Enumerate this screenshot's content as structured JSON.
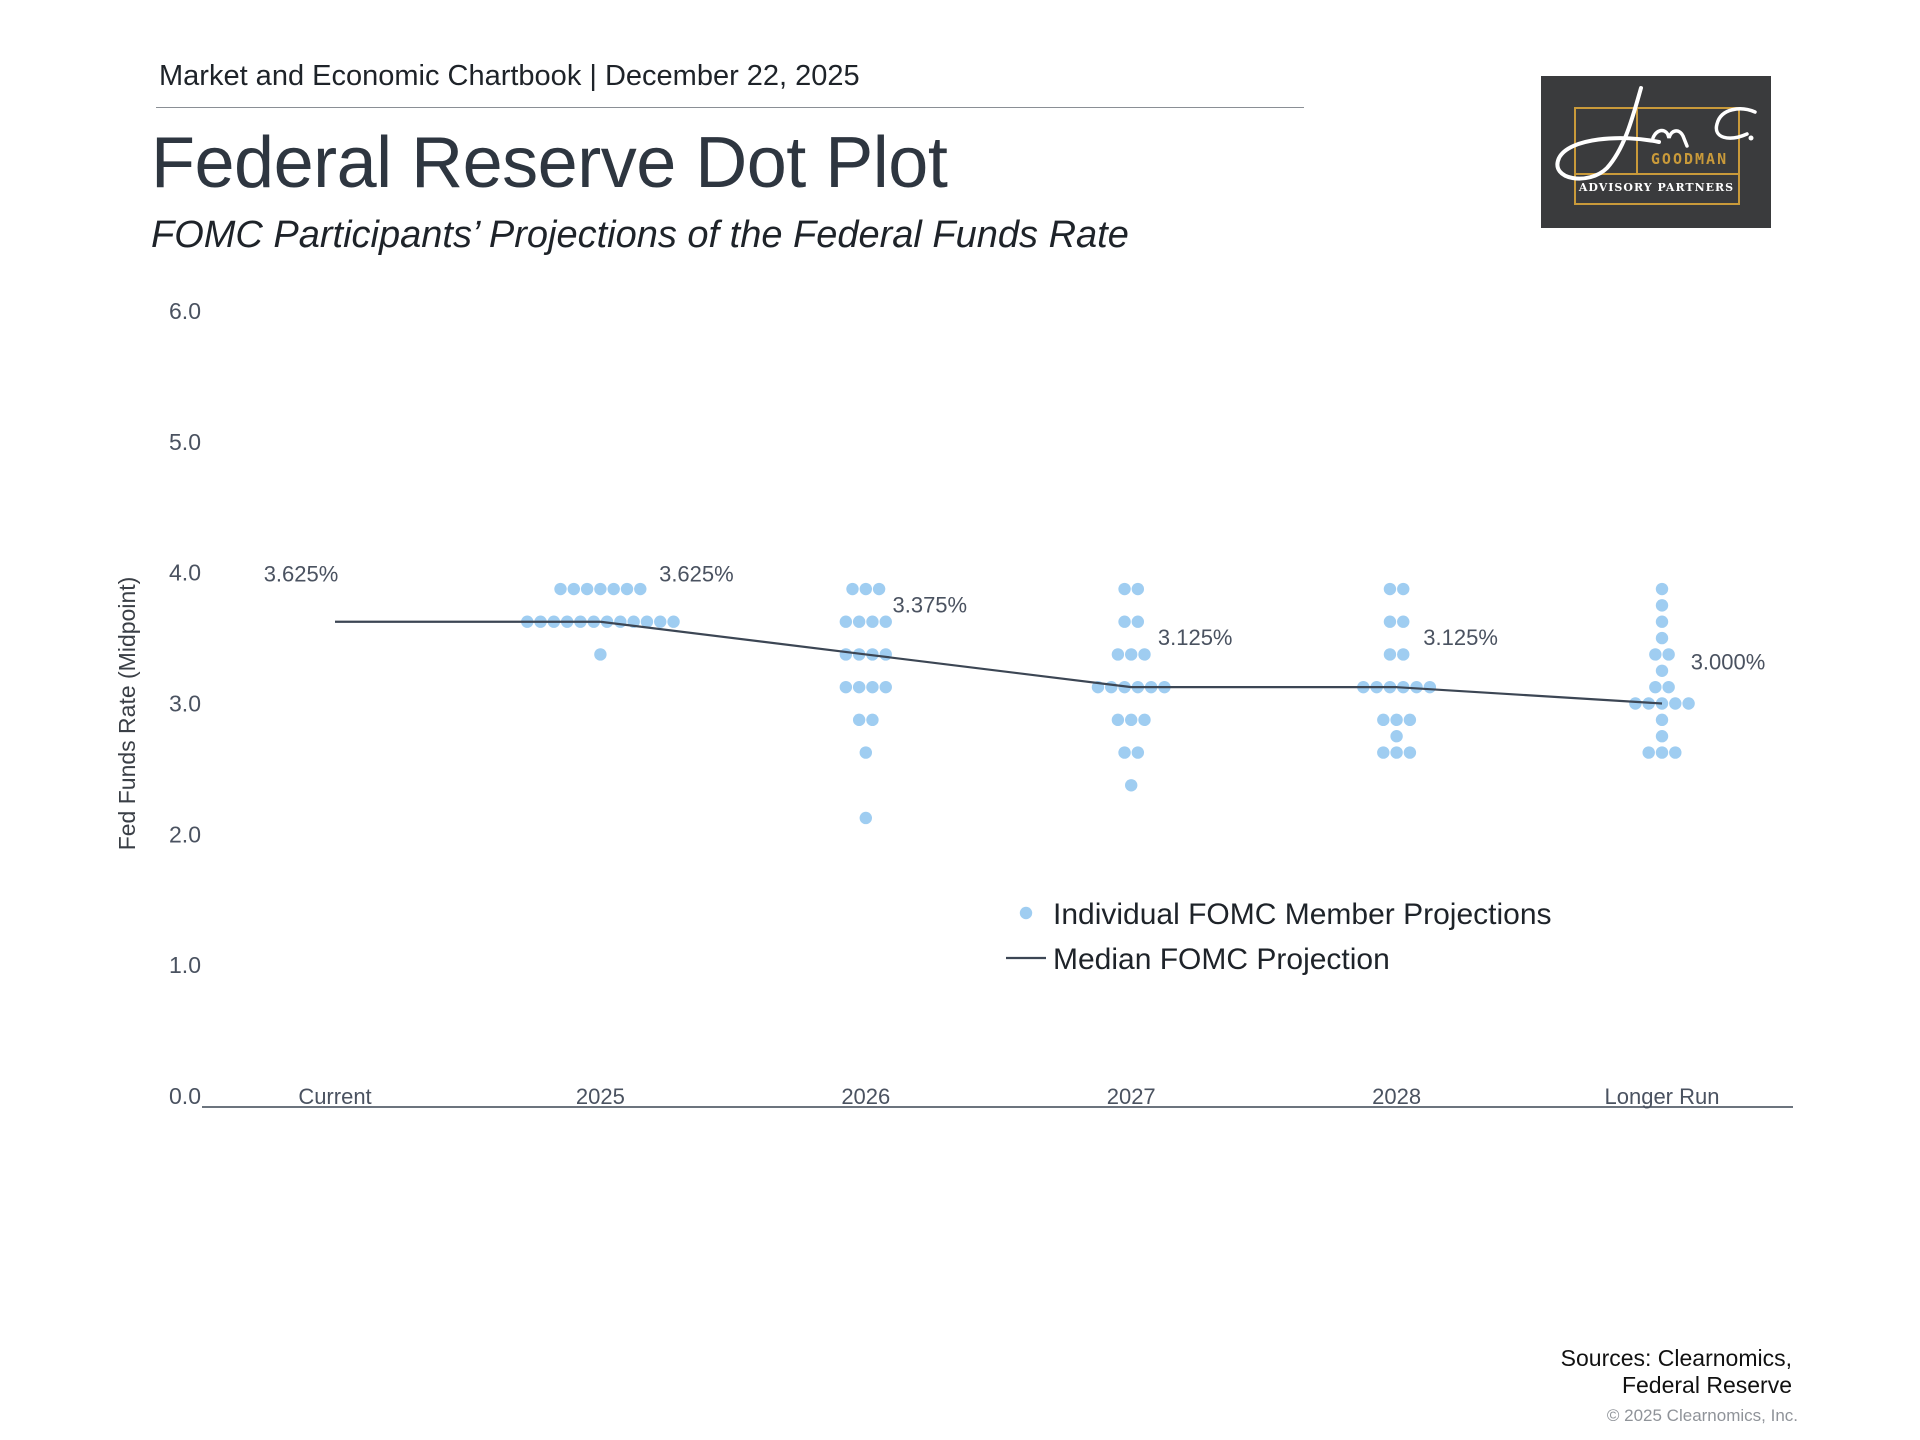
{
  "header": {
    "chartbook": "Market and Economic Chartbook | December 22, 2025",
    "title": "Federal Reserve Dot Plot",
    "subtitle": "FOMC Participants’ Projections of the Federal Funds Rate"
  },
  "logo": {
    "signature": "Jon C.",
    "name": "GOODMAN",
    "tagline": "ADVISORY PARTNERS",
    "colors": {
      "background": "#3a3b3d",
      "accent": "#c99a3a",
      "text": "#ffffff"
    }
  },
  "chart_data": {
    "type": "scatter",
    "title": "",
    "xlabel": "",
    "ylabel": "Fed Funds Rate (Midpoint)",
    "ylim": [
      0,
      6
    ],
    "yticks": [
      "0.0",
      "1.0",
      "2.0",
      "3.0",
      "4.0",
      "5.0",
      "6.0"
    ],
    "categories": [
      "Current",
      "2025",
      "2026",
      "2027",
      "2028",
      "Longer Run"
    ],
    "grid": false,
    "legend_position": "center-right",
    "colors": {
      "dots": "#9fcdf1",
      "median": "#3c4654",
      "text": "#4a5260"
    },
    "series": [
      {
        "name": "Individual FOMC Member Projections",
        "kind": "dots",
        "dots": [
          [],
          [
            {
              "value": 3.875,
              "count": 7
            },
            {
              "value": 3.625,
              "count": 12
            },
            {
              "value": 3.375,
              "count": 1
            }
          ],
          [
            {
              "value": 3.875,
              "count": 3
            },
            {
              "value": 3.625,
              "count": 4
            },
            {
              "value": 3.375,
              "count": 4
            },
            {
              "value": 3.125,
              "count": 4
            },
            {
              "value": 2.875,
              "count": 2
            },
            {
              "value": 2.625,
              "count": 1
            },
            {
              "value": 2.125,
              "count": 1
            }
          ],
          [
            {
              "value": 3.875,
              "count": 2
            },
            {
              "value": 3.625,
              "count": 2
            },
            {
              "value": 3.375,
              "count": 3
            },
            {
              "value": 3.125,
              "count": 6
            },
            {
              "value": 2.875,
              "count": 3
            },
            {
              "value": 2.625,
              "count": 2
            },
            {
              "value": 2.375,
              "count": 1
            }
          ],
          [
            {
              "value": 3.875,
              "count": 2
            },
            {
              "value": 3.625,
              "count": 2
            },
            {
              "value": 3.375,
              "count": 2
            },
            {
              "value": 3.125,
              "count": 6
            },
            {
              "value": 2.875,
              "count": 3
            },
            {
              "value": 2.75,
              "count": 1
            },
            {
              "value": 2.625,
              "count": 3
            }
          ],
          [
            {
              "value": 3.875,
              "count": 1
            },
            {
              "value": 3.75,
              "count": 1
            },
            {
              "value": 3.625,
              "count": 1
            },
            {
              "value": 3.5,
              "count": 1
            },
            {
              "value": 3.375,
              "count": 2
            },
            {
              "value": 3.25,
              "count": 1
            },
            {
              "value": 3.125,
              "count": 2
            },
            {
              "value": 3.0,
              "count": 5
            },
            {
              "value": 2.875,
              "count": 1
            },
            {
              "value": 2.75,
              "count": 1
            },
            {
              "value": 2.625,
              "count": 3
            }
          ]
        ]
      },
      {
        "name": "Median FOMC Projection",
        "kind": "line",
        "values": [
          3.625,
          3.625,
          3.375,
          3.125,
          3.125,
          3.0
        ],
        "labels": [
          "3.625%",
          "3.625%",
          "3.375%",
          "3.125%",
          "3.125%",
          "3.000%"
        ]
      }
    ]
  },
  "footer": {
    "sources_line1": "Sources: Clearnomics,",
    "sources_line2": "Federal Reserve",
    "copyright": "© 2025 Clearnomics, Inc."
  }
}
